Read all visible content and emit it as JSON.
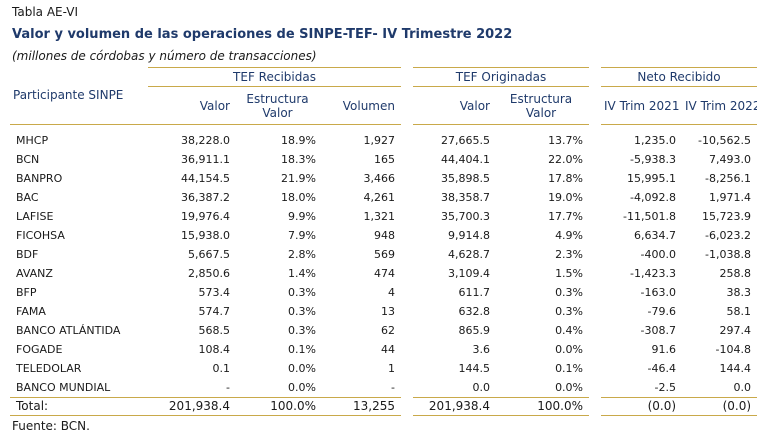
{
  "header": {
    "table_label": "Tabla AE-VI",
    "title": "Valor y volumen de las operaciones de SINPE-TEF- IV Trimestre 2022",
    "subtitle": "(millones de córdobas y número de transacciones)"
  },
  "columns": {
    "participant": "Participante SINPE",
    "group_received": "TEF Recibidas",
    "group_originated": "TEF Originadas",
    "group_net": "Neto Recibido",
    "valor": "Valor",
    "estructura_line1": "Estructura",
    "estructura_line2": "Valor",
    "volumen": "Volumen",
    "q4_2021": "IV Trim 2021",
    "q4_2022": "IV Trim 2022"
  },
  "rows": [
    {
      "name": "MHCP",
      "rec_valor": "38,228.0",
      "rec_est": "18.9%",
      "rec_vol": "1,927",
      "org_valor": "27,665.5",
      "org_est": "13.7%",
      "net_2021": "1,235.0",
      "net_2022": "-10,562.5"
    },
    {
      "name": "BCN",
      "rec_valor": "36,911.1",
      "rec_est": "18.3%",
      "rec_vol": "165",
      "org_valor": "44,404.1",
      "org_est": "22.0%",
      "net_2021": "-5,938.3",
      "net_2022": "7,493.0"
    },
    {
      "name": "BANPRO",
      "rec_valor": "44,154.5",
      "rec_est": "21.9%",
      "rec_vol": "3,466",
      "org_valor": "35,898.5",
      "org_est": "17.8%",
      "net_2021": "15,995.1",
      "net_2022": "-8,256.1"
    },
    {
      "name": "BAC",
      "rec_valor": "36,387.2",
      "rec_est": "18.0%",
      "rec_vol": "4,261",
      "org_valor": "38,358.7",
      "org_est": "19.0%",
      "net_2021": "-4,092.8",
      "net_2022": "1,971.4"
    },
    {
      "name": "LAFISE",
      "rec_valor": "19,976.4",
      "rec_est": "9.9%",
      "rec_vol": "1,321",
      "org_valor": "35,700.3",
      "org_est": "17.7%",
      "net_2021": "-11,501.8",
      "net_2022": "15,723.9"
    },
    {
      "name": "FICOHSA",
      "rec_valor": "15,938.0",
      "rec_est": "7.9%",
      "rec_vol": "948",
      "org_valor": "9,914.8",
      "org_est": "4.9%",
      "net_2021": "6,634.7",
      "net_2022": "-6,023.2"
    },
    {
      "name": "BDF",
      "rec_valor": "5,667.5",
      "rec_est": "2.8%",
      "rec_vol": "569",
      "org_valor": "4,628.7",
      "org_est": "2.3%",
      "net_2021": "-400.0",
      "net_2022": "-1,038.8"
    },
    {
      "name": "AVANZ",
      "rec_valor": "2,850.6",
      "rec_est": "1.4%",
      "rec_vol": "474",
      "org_valor": "3,109.4",
      "org_est": "1.5%",
      "net_2021": "-1,423.3",
      "net_2022": "258.8"
    },
    {
      "name": "BFP",
      "rec_valor": "573.4",
      "rec_est": "0.3%",
      "rec_vol": "4",
      "org_valor": "611.7",
      "org_est": "0.3%",
      "net_2021": "-163.0",
      "net_2022": "38.3"
    },
    {
      "name": "FAMA",
      "rec_valor": "574.7",
      "rec_est": "0.3%",
      "rec_vol": "13",
      "org_valor": "632.8",
      "org_est": "0.3%",
      "net_2021": "-79.6",
      "net_2022": "58.1"
    },
    {
      "name": "BANCO ATLÁNTIDA",
      "rec_valor": "568.5",
      "rec_est": "0.3%",
      "rec_vol": "62",
      "org_valor": "865.9",
      "org_est": "0.4%",
      "net_2021": "-308.7",
      "net_2022": "297.4"
    },
    {
      "name": "FOGADE",
      "rec_valor": "108.4",
      "rec_est": "0.1%",
      "rec_vol": "44",
      "org_valor": "3.6",
      "org_est": "0.0%",
      "net_2021": "91.6",
      "net_2022": "-104.8"
    },
    {
      "name": "TELEDOLAR",
      "rec_valor": "0.1",
      "rec_est": "0.0%",
      "rec_vol": "1",
      "org_valor": "144.5",
      "org_est": "0.1%",
      "net_2021": "-46.4",
      "net_2022": "144.4"
    },
    {
      "name": "BANCO MUNDIAL",
      "rec_valor": "-",
      "rec_est": "0.0%",
      "rec_vol": "-",
      "org_valor": "0.0",
      "org_est": "0.0%",
      "net_2021": "-2.5",
      "net_2022": "0.0"
    }
  ],
  "total": {
    "name": "Total:",
    "rec_valor": "201,938.4",
    "rec_est": "100.0%",
    "rec_vol": "13,255",
    "org_valor": "201,938.4",
    "org_est": "100.0%",
    "net_2021": "(0.0)",
    "net_2022": "(0.0)"
  },
  "footer": {
    "source": "Fuente: BCN."
  }
}
